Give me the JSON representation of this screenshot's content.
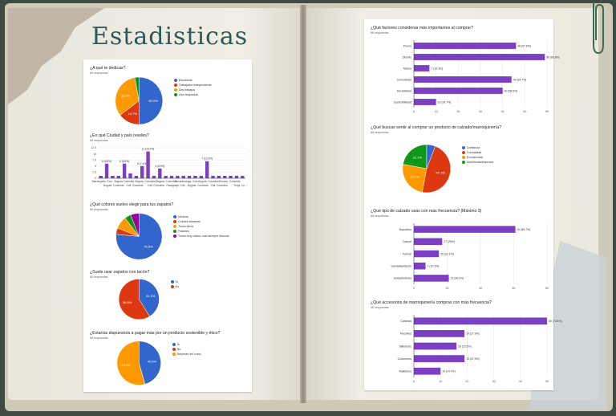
{
  "title": "Estadisticas",
  "chart_data": [
    {
      "id": "c1",
      "type": "pie",
      "title": "¿A qué te dedicas?",
      "responses": "68 respuestas",
      "labels": [
        "Estudiante",
        "Trabajador independiente",
        "Dos trabajos",
        "Otro respuesta"
      ],
      "colors": [
        "#3366cc",
        "#dc3912",
        "#ff9900",
        "#109618"
      ],
      "values": [
        50.0,
        14.7,
        32.4,
        2.9
      ],
      "slice_labels": [
        "50.0%",
        "14.7%",
        "32.4%",
        ""
      ]
    },
    {
      "id": "c2",
      "type": "bar",
      "title": "¿En qué Ciudad y país resides?",
      "responses": "68 respuestas",
      "categories": [
        "Barranquilla,",
        "Cali,",
        "Bogotá",
        "Cali",
        "Bogotá,",
        "Colombia",
        "Bogotá",
        "Cali,",
        "Medellín",
        "Bogota",
        "Bogota",
        "Cali,",
        "Bogota,",
        "Bucaramanga",
        "Cali",
        "Bogota",
        "Bogota",
        "Cali,",
        "Bogota",
        "Cali",
        "Bogota",
        "Cali,",
        "Tunja",
        "Cali",
        "Cali"
      ],
      "values": [
        1,
        6,
        1,
        1,
        6,
        2,
        1,
        5,
        11,
        1,
        4,
        1,
        1,
        1,
        1,
        1,
        1,
        1,
        7,
        1,
        1,
        1,
        1,
        1,
        1
      ],
      "value_labels": [
        "",
        "6 (8.8%)",
        "",
        "",
        "6 (8.8%)",
        "",
        "",
        "5 (7.4%)",
        "11 (16.2%)",
        "",
        "4 (5.9%)",
        "",
        "",
        "",
        "",
        "",
        "",
        "",
        "7 (10.3%)",
        "",
        "",
        "",
        "",
        "",
        ""
      ],
      "tick_labels": [
        "Barranquilla, Colo...",
        "Bogotá, Colombia",
        "Bogotá Colombia",
        "Cali, Colombia",
        "Bogotá, Colombia",
        "Cali, Colombia",
        "Bogotá, Colombia",
        "Pasaguaje, Colo...",
        "Bucaramanga, Colo...",
        "Bogota, Colombia",
        "Bogota, Colombia",
        "Cali, Colombia",
        "Rosario, Colombia",
        "Tunja, Co..."
      ],
      "y_ticks": [
        "0",
        "2.5",
        "5",
        "7.5",
        "10",
        "12.5"
      ],
      "ylim": [
        0,
        12.5
      ],
      "color": "#7b3fc4"
    },
    {
      "id": "c3",
      "type": "pie",
      "title": "¿Qué colores sueles elegir para tus zapatos?",
      "responses": "68 respuestas",
      "labels": [
        "Neutros",
        "Colores vibrantes",
        "Tonos tierra",
        "Pasteles",
        "Tonos muy claros, casi siempre blancos"
      ],
      "colors": [
        "#3366cc",
        "#dc3912",
        "#ff9900",
        "#109618",
        "#990099"
      ],
      "values": [
        76.5,
        4.4,
        8.8,
        4.4,
        5.9
      ],
      "slice_labels": [
        "76.5%",
        "",
        "",
        "",
        ""
      ]
    },
    {
      "id": "c4",
      "type": "pie",
      "title": "¿Suele usar zapatos con tacón?",
      "responses": "68 respuestas",
      "labels": [
        "Sí",
        "No"
      ],
      "colors": [
        "#3366cc",
        "#dc3912"
      ],
      "values": [
        41.2,
        58.8
      ],
      "slice_labels": [
        "41.2%",
        "58.8%"
      ]
    },
    {
      "id": "c5",
      "type": "pie",
      "title": "¿Estarías dispuesto/a a pagar más por un producto sostenible y ético?",
      "responses": "68 respuestas",
      "labels": [
        "Sí",
        "No",
        "Depende del costo"
      ],
      "colors": [
        "#3366cc",
        "#dc3912",
        "#ff9900"
      ],
      "values": [
        45.6,
        0.0,
        54.4
      ],
      "slice_labels": [
        "45.6%",
        "",
        "54.4%"
      ]
    },
    {
      "id": "c6",
      "type": "hbar",
      "title": "¿Qué factores consideras más importantes al comprar?",
      "responses": "68 respuestas",
      "categories": [
        "Precio",
        "Diseño",
        "Marca",
        "Comodidad",
        "Durabilidad",
        "Sostenibilidad"
      ],
      "values": [
        46,
        59,
        7,
        44,
        40,
        10
      ],
      "value_labels": [
        "46 (67.6%)",
        "59 (86.8%)",
        "7 (10.3%)",
        "44 (64.7%)",
        "40 (58.8%)",
        "10 (14.7%)"
      ],
      "x_ticks": [
        "0",
        "10",
        "20",
        "30",
        "40",
        "50",
        "60"
      ],
      "xlim": [
        0,
        60
      ],
      "color": "#7b3fc4"
    },
    {
      "id": "c7",
      "type": "pie",
      "title": "¿Qué buscas sentir al comprar un producto de calzado/marroquinería?",
      "responses": "68 respuestas",
      "labels": [
        "Confianza",
        "Comodidad",
        "Exclusividad",
        "Autenticidad/esencia"
      ],
      "colors": [
        "#3366cc",
        "#dc3912",
        "#ff9900",
        "#109618"
      ],
      "values": [
        5.9,
        47.1,
        25.0,
        22.1
      ],
      "slice_labels": [
        "",
        "47.1%",
        "25.0%",
        "22.1%"
      ]
    },
    {
      "id": "c8",
      "type": "hbar",
      "title": "¿Qué tipo de calzado usas con más frecuencia? (Máximo 3)",
      "responses": "68 respuestas",
      "categories": [
        "Deportivo",
        "Casual",
        "Formal",
        "Sandalias/tacón",
        "Botas/botines"
      ],
      "values": [
        61,
        17,
        15,
        7,
        21
      ],
      "value_labels": [
        "61 (89.7%)",
        "17 (25%)",
        "15 (22.1%)",
        "7 (10.3%)",
        "21 (30.9%)"
      ],
      "x_ticks": [
        "0",
        "20",
        "40",
        "60",
        "80"
      ],
      "xlim": [
        0,
        80
      ],
      "color": "#7b3fc4"
    },
    {
      "id": "c9",
      "type": "hbar",
      "title": "¿Qué accesorios de marroquinería compras con más frecuencia?",
      "responses": "68 respuestas",
      "categories": [
        "Carteras",
        "Mochilas",
        "Billeteras",
        "Cinturones",
        "Maletines"
      ],
      "values": [
        50,
        19,
        16,
        19,
        10
      ],
      "value_labels": [
        "50 (73.5%)",
        "19 (27.9%)",
        "16 (23.5%)",
        "19 (27.9%)",
        "10 (14.7%)"
      ],
      "x_ticks": [
        "0",
        "10",
        "20",
        "30",
        "40",
        "50"
      ],
      "xlim": [
        0,
        50
      ],
      "color": "#7b3fc4"
    }
  ]
}
